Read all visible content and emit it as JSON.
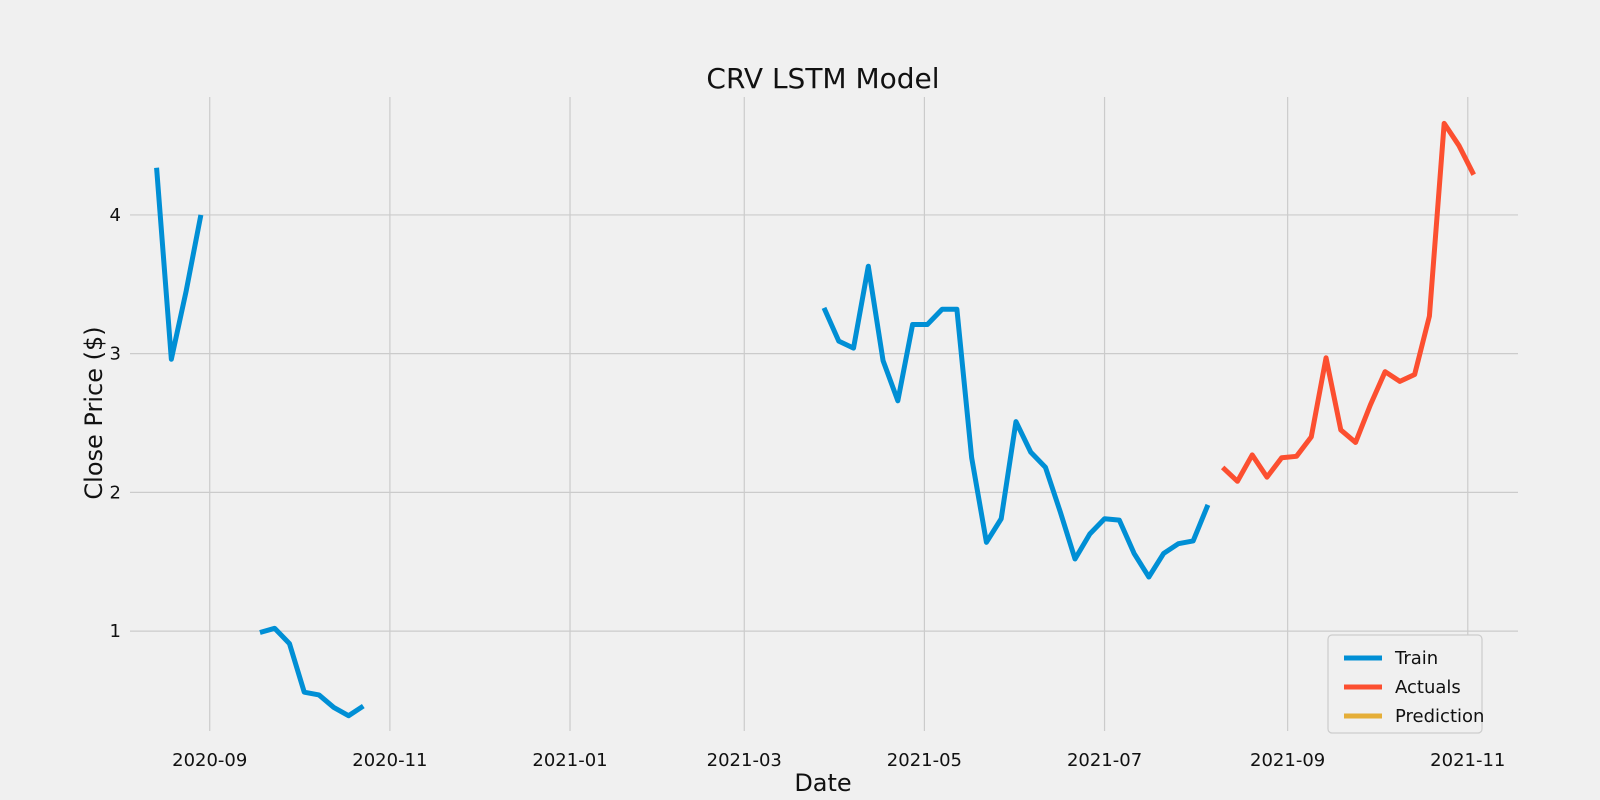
{
  "chart_data": {
    "type": "line",
    "title": "CRV LSTM Model",
    "xlabel": "Date",
    "ylabel": "Close Price ($)",
    "xlim": [
      "2020-08-05",
      "2021-11-18"
    ],
    "ylim": [
      0.28,
      4.85
    ],
    "x_ticks": [
      "2020-09-01",
      "2020-11-01",
      "2021-01-01",
      "2021-03-01",
      "2021-05-01",
      "2021-07-01",
      "2021-09-01",
      "2021-11-01"
    ],
    "x_tick_labels": [
      "2020-09",
      "2020-11",
      "2021-01",
      "2021-03",
      "2021-05",
      "2021-07",
      "2021-09",
      "2021-11"
    ],
    "y_ticks": [
      1,
      2,
      3,
      4
    ],
    "y_tick_labels": [
      "1",
      "2",
      "3",
      "4"
    ],
    "grid": true,
    "legend_position": "bottom-right",
    "series": [
      {
        "name": "Train",
        "color": "#008fd5",
        "segments": [
          [
            {
              "x": "2020-08-14",
              "y": 4.34
            },
            {
              "x": "2020-08-19",
              "y": 2.96
            },
            {
              "x": "2020-08-24",
              "y": 3.45
            },
            {
              "x": "2020-08-29",
              "y": 4.0
            }
          ],
          [
            {
              "x": "2020-09-18",
              "y": 0.99
            },
            {
              "x": "2020-09-23",
              "y": 1.02
            },
            {
              "x": "2020-09-28",
              "y": 0.91
            },
            {
              "x": "2020-10-03",
              "y": 0.56
            },
            {
              "x": "2020-10-08",
              "y": 0.54
            },
            {
              "x": "2020-10-13",
              "y": 0.45
            },
            {
              "x": "2020-10-18",
              "y": 0.39
            },
            {
              "x": "2020-10-23",
              "y": 0.46
            }
          ],
          [
            {
              "x": "2021-03-28",
              "y": 3.33
            },
            {
              "x": "2021-04-02",
              "y": 3.09
            },
            {
              "x": "2021-04-07",
              "y": 3.04
            },
            {
              "x": "2021-04-12",
              "y": 3.63
            },
            {
              "x": "2021-04-17",
              "y": 2.95
            },
            {
              "x": "2021-04-22",
              "y": 2.66
            },
            {
              "x": "2021-04-27",
              "y": 3.21
            },
            {
              "x": "2021-05-02",
              "y": 3.21
            },
            {
              "x": "2021-05-07",
              "y": 3.32
            },
            {
              "x": "2021-05-12",
              "y": 3.32
            },
            {
              "x": "2021-05-17",
              "y": 2.25
            },
            {
              "x": "2021-05-22",
              "y": 1.64
            },
            {
              "x": "2021-05-27",
              "y": 1.81
            },
            {
              "x": "2021-06-01",
              "y": 2.51
            },
            {
              "x": "2021-06-06",
              "y": 2.29
            },
            {
              "x": "2021-06-11",
              "y": 2.18
            },
            {
              "x": "2021-06-16",
              "y": 1.86
            },
            {
              "x": "2021-06-21",
              "y": 1.52
            },
            {
              "x": "2021-06-26",
              "y": 1.7
            },
            {
              "x": "2021-07-01",
              "y": 1.81
            },
            {
              "x": "2021-07-06",
              "y": 1.8
            },
            {
              "x": "2021-07-11",
              "y": 1.56
            },
            {
              "x": "2021-07-16",
              "y": 1.39
            },
            {
              "x": "2021-07-21",
              "y": 1.56
            },
            {
              "x": "2021-07-26",
              "y": 1.63
            },
            {
              "x": "2021-07-31",
              "y": 1.65
            },
            {
              "x": "2021-08-05",
              "y": 1.91
            }
          ]
        ]
      },
      {
        "name": "Actuals",
        "color": "#fc4f30",
        "segments": [
          [
            {
              "x": "2021-08-10",
              "y": 2.18
            },
            {
              "x": "2021-08-15",
              "y": 2.08
            },
            {
              "x": "2021-08-20",
              "y": 2.27
            },
            {
              "x": "2021-08-25",
              "y": 2.11
            },
            {
              "x": "2021-08-30",
              "y": 2.25
            },
            {
              "x": "2021-09-04",
              "y": 2.26
            },
            {
              "x": "2021-09-09",
              "y": 2.4
            },
            {
              "x": "2021-09-14",
              "y": 2.97
            },
            {
              "x": "2021-09-19",
              "y": 2.45
            },
            {
              "x": "2021-09-24",
              "y": 2.36
            },
            {
              "x": "2021-09-29",
              "y": 2.63
            },
            {
              "x": "2021-10-04",
              "y": 2.87
            },
            {
              "x": "2021-10-09",
              "y": 2.8
            },
            {
              "x": "2021-10-14",
              "y": 2.85
            },
            {
              "x": "2021-10-19",
              "y": 3.27
            },
            {
              "x": "2021-10-24",
              "y": 4.66
            },
            {
              "x": "2021-10-29",
              "y": 4.5
            },
            {
              "x": "2021-11-03",
              "y": 4.29
            }
          ]
        ]
      },
      {
        "name": "Prediction",
        "color": "#e5ae38",
        "segments": []
      }
    ]
  }
}
